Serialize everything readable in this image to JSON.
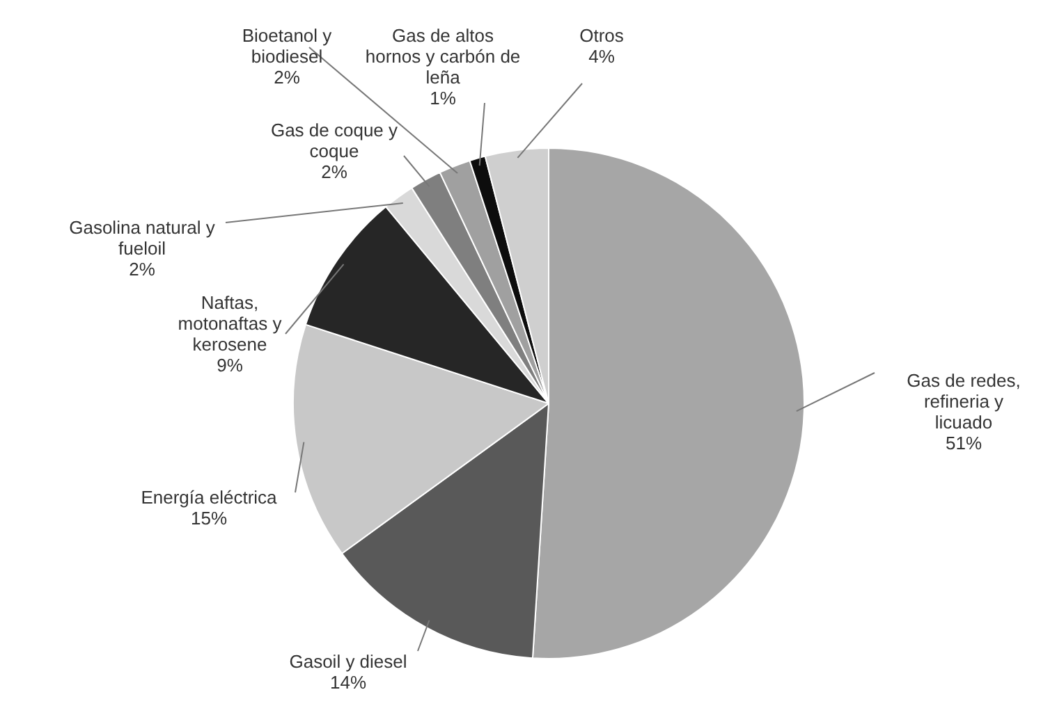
{
  "chart_data": {
    "type": "pie",
    "categories": [
      "Gas de redes, refineria y licuado",
      "Gasoil y diesel",
      "Energía eléctrica",
      "Naftas, motonaftas y kerosene",
      "Gasolina natural y fueloil",
      "Gas de coque y coque",
      "Bioetanol y biodiesel",
      "Gas de altos hornos y carbón de leña",
      "Otros"
    ],
    "values": [
      51,
      14,
      15,
      9,
      2,
      2,
      2,
      1,
      4
    ],
    "value_labels": [
      "51%",
      "14%",
      "15%",
      "9%",
      "2%",
      "2%",
      "2%",
      "1%",
      "4%"
    ],
    "colors": [
      "#a6a6a6",
      "#595959",
      "#c8c8c8",
      "#262626",
      "#d9d9d9",
      "#7f7f7f",
      "#a0a0a0",
      "#0d0d0d",
      "#cfcfcf"
    ],
    "legend": false
  }
}
